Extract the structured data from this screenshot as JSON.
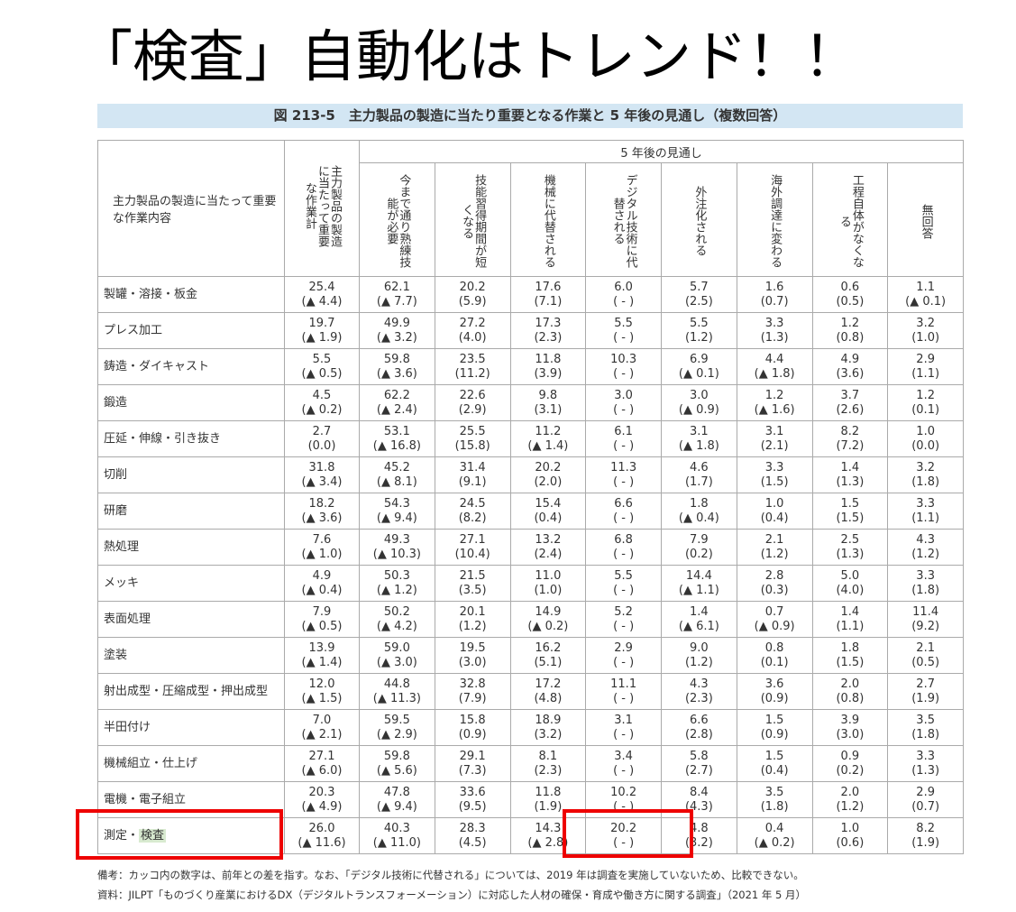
{
  "title": "「検査」自動化はトレンド！！",
  "figure_title": "図 213-5　主力製品の製造に当たり重要となる作業と 5 年後の見通し（複数回答）",
  "table": {
    "row_header": "主力製品の製造に当たって重要な作業内容",
    "total_header": "主力製品の製造に当たって重要な作業計",
    "group_header": "5 年後の見通し",
    "columns": [
      "今まで通り熟練技能が必要",
      "技能習得期間が短くなる",
      "機械に代替される",
      "デジタル技術に代替される",
      "外注化される",
      "海外調達に変わる",
      "工程自体がなくなる",
      "無回答"
    ],
    "rows": [
      {
        "label": "製罐・溶接・板金",
        "cells": [
          [
            "25.4",
            "(▲ 4.4)"
          ],
          [
            "62.1",
            "(▲ 7.7)"
          ],
          [
            "20.2",
            "(5.9)"
          ],
          [
            "17.6",
            "(7.1)"
          ],
          [
            "6.0",
            "( - )"
          ],
          [
            "5.7",
            "(2.5)"
          ],
          [
            "1.6",
            "(0.7)"
          ],
          [
            "0.6",
            "(0.5)"
          ],
          [
            "1.1",
            "(▲ 0.1)"
          ]
        ]
      },
      {
        "label": "プレス加工",
        "cells": [
          [
            "19.7",
            "(▲ 1.9)"
          ],
          [
            "49.9",
            "(▲ 3.2)"
          ],
          [
            "27.2",
            "(4.0)"
          ],
          [
            "17.3",
            "(2.3)"
          ],
          [
            "5.5",
            "( - )"
          ],
          [
            "5.5",
            "(1.2)"
          ],
          [
            "3.3",
            "(1.3)"
          ],
          [
            "1.2",
            "(0.8)"
          ],
          [
            "3.2",
            "(1.0)"
          ]
        ]
      },
      {
        "label": "鋳造・ダイキャスト",
        "cells": [
          [
            "5.5",
            "(▲ 0.5)"
          ],
          [
            "59.8",
            "(▲ 3.6)"
          ],
          [
            "23.5",
            "(11.2)"
          ],
          [
            "11.8",
            "(3.9)"
          ],
          [
            "10.3",
            "( - )"
          ],
          [
            "6.9",
            "(▲ 0.1)"
          ],
          [
            "4.4",
            "(▲ 1.8)"
          ],
          [
            "4.9",
            "(3.6)"
          ],
          [
            "2.9",
            "(1.1)"
          ]
        ]
      },
      {
        "label": "鍛造",
        "cells": [
          [
            "4.5",
            "(▲ 0.2)"
          ],
          [
            "62.2",
            "(▲ 2.4)"
          ],
          [
            "22.6",
            "(2.9)"
          ],
          [
            "9.8",
            "(3.1)"
          ],
          [
            "3.0",
            "( - )"
          ],
          [
            "3.0",
            "(▲ 0.9)"
          ],
          [
            "1.2",
            "(▲ 1.6)"
          ],
          [
            "3.7",
            "(2.6)"
          ],
          [
            "1.2",
            "(0.1)"
          ]
        ]
      },
      {
        "label": "圧延・伸線・引き抜き",
        "cells": [
          [
            "2.7",
            "(0.0)"
          ],
          [
            "53.1",
            "(▲ 16.8)"
          ],
          [
            "25.5",
            "(15.8)"
          ],
          [
            "11.2",
            "(▲ 1.4)"
          ],
          [
            "6.1",
            "( - )"
          ],
          [
            "3.1",
            "(▲ 1.8)"
          ],
          [
            "3.1",
            "(2.1)"
          ],
          [
            "8.2",
            "(7.2)"
          ],
          [
            "1.0",
            "(0.0)"
          ]
        ]
      },
      {
        "label": "切削",
        "cells": [
          [
            "31.8",
            "(▲ 3.4)"
          ],
          [
            "45.2",
            "(▲ 8.1)"
          ],
          [
            "31.4",
            "(9.1)"
          ],
          [
            "20.2",
            "(2.0)"
          ],
          [
            "11.3",
            "( - )"
          ],
          [
            "4.6",
            "(1.7)"
          ],
          [
            "3.3",
            "(1.5)"
          ],
          [
            "1.4",
            "(1.3)"
          ],
          [
            "3.2",
            "(1.8)"
          ]
        ]
      },
      {
        "label": "研磨",
        "cells": [
          [
            "18.2",
            "(▲ 3.6)"
          ],
          [
            "54.3",
            "(▲ 9.4)"
          ],
          [
            "24.5",
            "(8.2)"
          ],
          [
            "15.4",
            "(0.4)"
          ],
          [
            "6.6",
            "( - )"
          ],
          [
            "1.8",
            "(▲ 0.4)"
          ],
          [
            "1.0",
            "(0.4)"
          ],
          [
            "1.5",
            "(1.5)"
          ],
          [
            "3.3",
            "(1.1)"
          ]
        ]
      },
      {
        "label": "熱処理",
        "cells": [
          [
            "7.6",
            "(▲ 1.0)"
          ],
          [
            "49.3",
            "(▲ 10.3)"
          ],
          [
            "27.1",
            "(10.4)"
          ],
          [
            "13.2",
            "(2.4)"
          ],
          [
            "6.8",
            "( - )"
          ],
          [
            "7.9",
            "(0.2)"
          ],
          [
            "2.1",
            "(1.2)"
          ],
          [
            "2.5",
            "(1.3)"
          ],
          [
            "4.3",
            "(1.2)"
          ]
        ]
      },
      {
        "label": "メッキ",
        "cells": [
          [
            "4.9",
            "(▲ 0.4)"
          ],
          [
            "50.3",
            "(▲ 1.2)"
          ],
          [
            "21.5",
            "(3.5)"
          ],
          [
            "11.0",
            "(1.0)"
          ],
          [
            "5.5",
            "( - )"
          ],
          [
            "14.4",
            "(▲ 1.1)"
          ],
          [
            "2.8",
            "(0.3)"
          ],
          [
            "5.0",
            "(4.0)"
          ],
          [
            "3.3",
            "(1.8)"
          ]
        ]
      },
      {
        "label": "表面処理",
        "cells": [
          [
            "7.9",
            "(▲ 0.5)"
          ],
          [
            "50.2",
            "(▲ 4.2)"
          ],
          [
            "20.1",
            "(1.2)"
          ],
          [
            "14.9",
            "(▲ 0.2)"
          ],
          [
            "5.2",
            "( - )"
          ],
          [
            "1.4",
            "(▲ 6.1)"
          ],
          [
            "0.7",
            "(▲ 0.9)"
          ],
          [
            "1.4",
            "(1.1)"
          ],
          [
            "11.4",
            "(9.2)"
          ]
        ]
      },
      {
        "label": "塗装",
        "cells": [
          [
            "13.9",
            "(▲ 1.4)"
          ],
          [
            "59.0",
            "(▲ 3.0)"
          ],
          [
            "19.5",
            "(3.0)"
          ],
          [
            "16.2",
            "(5.1)"
          ],
          [
            "2.9",
            "( - )"
          ],
          [
            "9.0",
            "(1.2)"
          ],
          [
            "0.8",
            "(0.1)"
          ],
          [
            "1.8",
            "(1.5)"
          ],
          [
            "2.1",
            "(0.5)"
          ]
        ]
      },
      {
        "label": "射出成型・圧縮成型・押出成型",
        "cells": [
          [
            "12.0",
            "(▲ 1.5)"
          ],
          [
            "44.8",
            "(▲ 11.3)"
          ],
          [
            "32.8",
            "(7.9)"
          ],
          [
            "17.2",
            "(4.8)"
          ],
          [
            "11.1",
            "( - )"
          ],
          [
            "4.3",
            "(2.3)"
          ],
          [
            "3.6",
            "(0.9)"
          ],
          [
            "2.0",
            "(0.8)"
          ],
          [
            "2.7",
            "(1.9)"
          ]
        ]
      },
      {
        "label": "半田付け",
        "cells": [
          [
            "7.0",
            "(▲ 2.1)"
          ],
          [
            "59.5",
            "(▲ 2.9)"
          ],
          [
            "15.8",
            "(0.9)"
          ],
          [
            "18.9",
            "(3.2)"
          ],
          [
            "3.1",
            "( - )"
          ],
          [
            "6.6",
            "(2.8)"
          ],
          [
            "1.5",
            "(0.9)"
          ],
          [
            "3.9",
            "(3.0)"
          ],
          [
            "3.5",
            "(1.8)"
          ]
        ]
      },
      {
        "label": "機械組立・仕上げ",
        "cells": [
          [
            "27.1",
            "(▲ 6.0)"
          ],
          [
            "59.8",
            "(▲ 5.6)"
          ],
          [
            "29.1",
            "(7.3)"
          ],
          [
            "8.1",
            "(2.3)"
          ],
          [
            "3.4",
            "( - )"
          ],
          [
            "5.8",
            "(2.7)"
          ],
          [
            "1.5",
            "(0.4)"
          ],
          [
            "0.9",
            "(0.2)"
          ],
          [
            "3.3",
            "(1.3)"
          ]
        ]
      },
      {
        "label": "電機・電子組立",
        "cells": [
          [
            "20.3",
            "(▲ 4.9)"
          ],
          [
            "47.8",
            "(▲ 9.4)"
          ],
          [
            "33.6",
            "(9.5)"
          ],
          [
            "11.8",
            "(1.9)"
          ],
          [
            "10.2",
            "( - )"
          ],
          [
            "8.4",
            "(4.3)"
          ],
          [
            "3.5",
            "(1.8)"
          ],
          [
            "2.0",
            "(1.2)"
          ],
          [
            "2.9",
            "(0.7)"
          ]
        ]
      },
      {
        "label": "測定・",
        "highlight": "検査",
        "cells": [
          [
            "26.0",
            "(▲ 11.6)"
          ],
          [
            "40.3",
            "(▲ 11.0)"
          ],
          [
            "28.3",
            "(4.5)"
          ],
          [
            "14.3",
            "(▲ 2.8)"
          ],
          [
            "20.2",
            "( - )"
          ],
          [
            "4.8",
            "(3.2)"
          ],
          [
            "0.4",
            "(▲ 0.2)"
          ],
          [
            "1.0",
            "(0.6)"
          ],
          [
            "8.2",
            "(1.9)"
          ]
        ]
      }
    ]
  },
  "notes": [
    "備考：カッコ内の数字は、前年との差を指す。なお、「デジタル技術に代替される」については、2019 年は調査を実施していないため、比較できない。",
    "資料：JILPT「ものづくり産業におけるDX（デジタルトランスフォーメーション）に対応した人材の確保・育成や働き方に関する調査」（2021 年 5 月）"
  ]
}
